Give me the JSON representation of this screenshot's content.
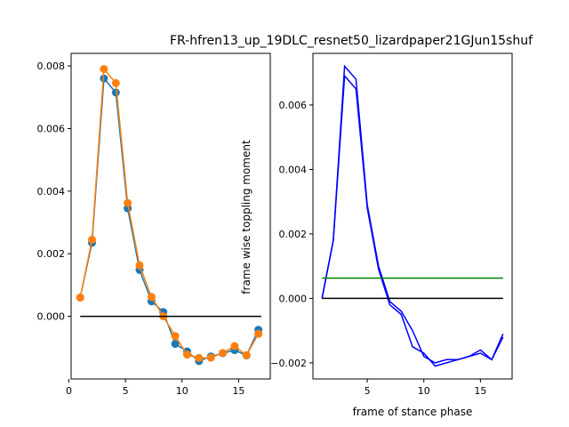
{
  "chart_data": [
    {
      "type": "line",
      "title": "",
      "xlabel": "",
      "ylabel": "",
      "xlim": [
        0.2,
        17.8
      ],
      "ylim": [
        -0.002,
        0.0084
      ],
      "xticks": [
        0,
        5,
        10,
        15
      ],
      "xtick_labels": [
        "0",
        "5",
        "10",
        "15"
      ],
      "yticks": [
        0.0,
        0.002,
        0.004,
        0.006,
        0.008
      ],
      "ytick_labels": [
        "0.000",
        "0.002",
        "0.004",
        "0.006",
        "0.008"
      ],
      "grid": false,
      "series": [
        {
          "color": "#1f77b4",
          "marker": "circle",
          "x": [
            1,
            2.05,
            3.1,
            4.15,
            5.2,
            6.25,
            7.3,
            8.35,
            9.4,
            10.45,
            11.5,
            12.55,
            13.6,
            14.65,
            15.7,
            16.75
          ],
          "y": [
            0.0006,
            0.00235,
            0.0076,
            0.00715,
            0.00345,
            0.00148,
            0.00048,
            0.00014,
            -0.00088,
            -0.00112,
            -0.00143,
            -0.00128,
            -0.00118,
            -0.00108,
            -0.00125,
            -0.00043
          ]
        },
        {
          "color": "#ff7f0e",
          "marker": "circle",
          "x": [
            1,
            2.05,
            3.1,
            4.15,
            5.2,
            6.25,
            7.3,
            8.35,
            9.4,
            10.45,
            11.5,
            12.55,
            13.6,
            14.65,
            15.7,
            16.75
          ],
          "y": [
            0.0006,
            0.00245,
            0.0079,
            0.00745,
            0.00362,
            0.00163,
            0.00062,
            0.0,
            -0.00063,
            -0.00122,
            -0.00133,
            -0.00132,
            -0.00117,
            -0.00095,
            -0.00124,
            -0.00056
          ]
        },
        {
          "color": "#000000",
          "marker": "none",
          "x": [
            1,
            17
          ],
          "y": [
            0.0,
            0.0
          ]
        }
      ]
    },
    {
      "type": "line",
      "title": "FR-hfren13_up_19DLC_resnet50_lizardpaper21GJun15shuf",
      "xlabel": "frame of stance phase",
      "ylabel": "frame wise toppling moment",
      "xlim": [
        0.2,
        17.8
      ],
      "ylim": [
        -0.0025,
        0.0076
      ],
      "xticks": [
        5,
        10,
        15
      ],
      "xtick_labels": [
        "5",
        "10",
        "15"
      ],
      "yticks": [
        -0.002,
        0.0,
        0.002,
        0.004,
        0.006
      ],
      "ytick_labels": [
        "−0.002",
        "0.000",
        "0.002",
        "0.004",
        "0.006"
      ],
      "grid": false,
      "series": [
        {
          "color": "#0000ff",
          "marker": "none",
          "x": [
            1,
            2,
            3,
            4,
            5,
            6,
            7,
            8,
            9,
            10,
            11,
            12,
            13,
            14,
            15,
            16,
            17
          ],
          "y": [
            0.0,
            0.0018,
            0.0072,
            0.0068,
            0.0029,
            0.001,
            -0.0001,
            -0.0004,
            -0.001,
            -0.0018,
            -0.002,
            -0.0019,
            -0.0019,
            -0.0018,
            -0.0016,
            -0.0019,
            -0.0011
          ]
        },
        {
          "color": "#0000ff",
          "marker": "none",
          "x": [
            1,
            2,
            3,
            4,
            5,
            6,
            7,
            8,
            9,
            10,
            11,
            12,
            13,
            14,
            15,
            16,
            17
          ],
          "y": [
            0.0,
            0.0018,
            0.0069,
            0.0065,
            0.0028,
            0.0009,
            -0.0002,
            -0.0005,
            -0.0015,
            -0.0017,
            -0.0021,
            -0.002,
            -0.0019,
            -0.0018,
            -0.0017,
            -0.0019,
            -0.0012
          ]
        },
        {
          "color": "#008000",
          "marker": "none",
          "x": [
            1,
            17
          ],
          "y": [
            0.00063,
            0.00063
          ]
        },
        {
          "color": "#000000",
          "marker": "none",
          "x": [
            1,
            17
          ],
          "y": [
            0.0,
            0.0
          ]
        }
      ]
    }
  ]
}
